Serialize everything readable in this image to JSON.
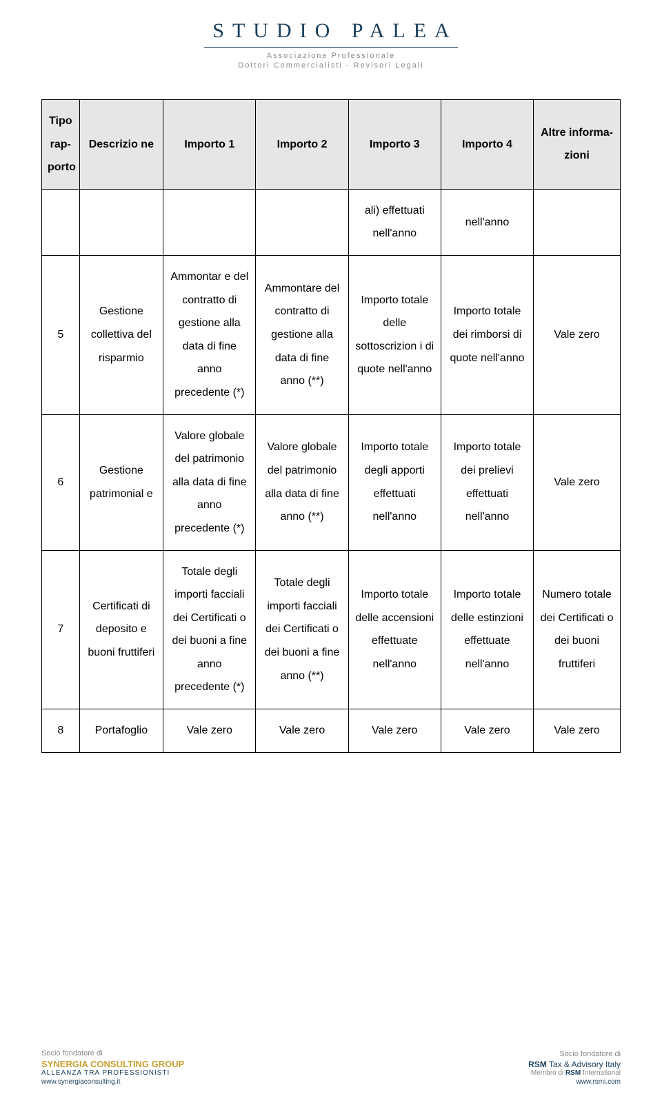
{
  "header": {
    "title": "STUDIO PALEA",
    "sub1": "Associazione Professionale",
    "sub2": "Dottori Commercialisti - Revisori Legali"
  },
  "table": {
    "headers": [
      "Tipo rap-porto",
      "Descrizio ne",
      "Importo 1",
      "Importo 2",
      "Importo 3",
      "Importo 4",
      "Altre informa-zioni"
    ],
    "rows": [
      [
        "",
        "",
        "",
        "",
        "ali) effettuati nell'anno",
        "nell'anno",
        ""
      ],
      [
        "5",
        "Gestione collettiva del risparmio",
        "Ammontar e del contratto di gestione alla data di fine anno precedente (*)",
        "Ammontare del contratto di gestione alla data di fine anno (**)",
        "Importo totale delle sottoscrizion i di quote nell'anno",
        "Importo totale dei rimborsi di quote nell'anno",
        "Vale zero"
      ],
      [
        "6",
        "Gestione patrimonial e",
        "Valore globale del patrimonio alla data di fine anno precedente (*)",
        "Valore globale del patrimonio alla data di fine anno (**)",
        "Importo totale degli apporti effettuati nell'anno",
        "Importo totale dei prelievi effettuati nell'anno",
        "Vale zero"
      ],
      [
        "7",
        "Certificati di deposito e buoni fruttiferi",
        "Totale degli importi facciali dei Certificati o dei buoni a fine anno precedente (*)",
        "Totale degli importi facciali dei Certificati o dei buoni a fine anno (**)",
        "Importo totale delle accensioni effettuate nell'anno",
        "Importo totale delle estinzioni effettuate nell'anno",
        "Numero totale dei Certificati o dei buoni fruttiferi"
      ],
      [
        "8",
        "Portafoglio",
        "Vale zero",
        "Vale zero",
        "Vale zero",
        "Vale zero",
        "Vale zero"
      ]
    ]
  },
  "footer": {
    "left": {
      "line1": "Socio fondatore di",
      "line2": "SYNERGIA CONSULTING GROUP",
      "line3": "ALLEANZA TRA PROFESSIONISTI",
      "line4": "www.synergiaconsulting.it"
    },
    "right": {
      "line1": "Socio fondatore di",
      "line2a": "RSM",
      "line2b": " Tax & Advisory Italy",
      "line3a": "Membro di ",
      "line3b": "RSM",
      "line3c": " International",
      "line4": "www.rsmi.com"
    }
  }
}
